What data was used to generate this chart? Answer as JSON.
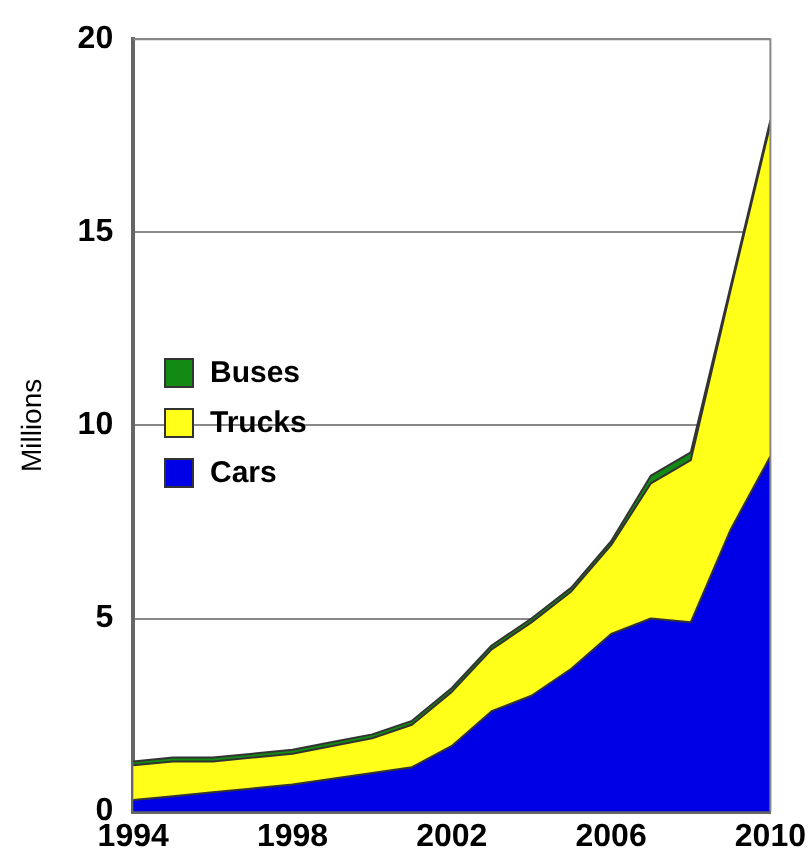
{
  "chart_data": {
    "type": "area",
    "ylabel": "Millions",
    "stacked": true,
    "x": [
      1994,
      1995,
      1996,
      1997,
      1998,
      1999,
      2000,
      2001,
      2002,
      2003,
      2004,
      2005,
      2006,
      2007,
      2008,
      2009,
      2010
    ],
    "series": [
      {
        "name": "Cars",
        "color": "#0000e6",
        "values": [
          0.3,
          0.4,
          0.5,
          0.6,
          0.7,
          0.85,
          1.0,
          1.15,
          1.7,
          2.6,
          3.0,
          3.7,
          4.6,
          5.0,
          4.9,
          7.3,
          9.2
        ]
      },
      {
        "name": "Trucks",
        "color": "#ffff1a",
        "values": [
          0.9,
          0.9,
          0.8,
          0.8,
          0.8,
          0.85,
          0.9,
          1.1,
          1.4,
          1.6,
          1.9,
          2.0,
          2.3,
          3.5,
          4.2,
          6.2,
          8.6
        ]
      },
      {
        "name": "Buses",
        "color": "#138a13",
        "values": [
          0.1,
          0.1,
          0.1,
          0.1,
          0.1,
          0.1,
          0.1,
          0.1,
          0.1,
          0.1,
          0.1,
          0.1,
          0.1,
          0.2,
          0.2,
          0.1,
          0.1
        ]
      }
    ],
    "xlim": [
      1994,
      2010
    ],
    "xticks": [
      1994,
      1998,
      2002,
      2006,
      2010
    ],
    "ylim": [
      0,
      20
    ],
    "yticks": [
      0,
      5,
      10,
      15,
      20
    ],
    "grid": "y",
    "legend": "left",
    "marker": "none"
  }
}
